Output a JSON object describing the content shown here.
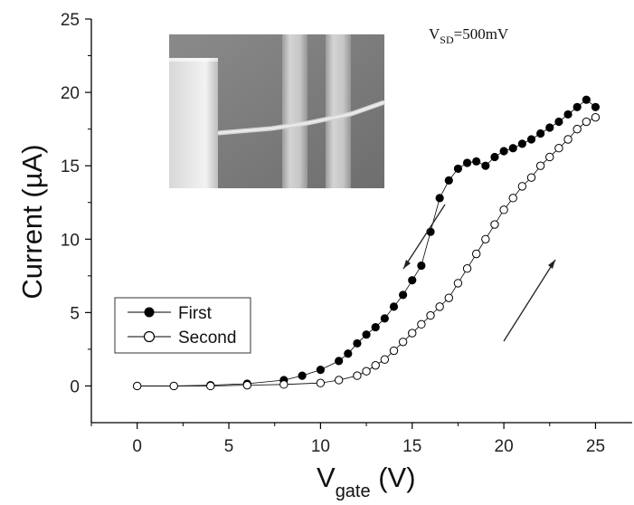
{
  "chart_data": {
    "type": "scatter",
    "annotation": {
      "main": "V",
      "sub": "SD",
      "tail": "=500mV"
    },
    "xlabel": {
      "main": "V",
      "sub": "gate",
      "tail": " (V)"
    },
    "ylabel": "Current (µA)",
    "xlim": [
      -2.5,
      27
    ],
    "ylim": [
      -2.5,
      25
    ],
    "xticks": [
      0,
      5,
      10,
      15,
      20,
      25
    ],
    "yticks": [
      0,
      5,
      10,
      15,
      20,
      25
    ],
    "xtick_labels": [
      "0",
      "5",
      "10",
      "15",
      "20",
      "25"
    ],
    "ytick_labels": [
      "0",
      "5",
      "10",
      "15",
      "20",
      "25"
    ],
    "grid": false,
    "legend_position": "bottom-left",
    "inset": "SEM micrograph",
    "series": [
      {
        "name": "First",
        "marker": "filled-circle",
        "color": "#000000",
        "x": [
          0,
          2,
          4,
          6,
          8,
          9,
          10,
          11,
          11.5,
          12,
          12.5,
          13,
          13.5,
          14,
          14.5,
          15,
          15.5,
          16,
          16.5,
          17,
          17.5,
          18,
          18.5,
          19,
          19.5,
          20,
          20.5,
          21,
          21.5,
          22,
          22.5,
          23,
          23.5,
          24,
          24.5,
          25
        ],
        "y": [
          0,
          0,
          0.05,
          0.15,
          0.4,
          0.7,
          1.1,
          1.7,
          2.2,
          2.9,
          3.5,
          4.0,
          4.6,
          5.4,
          6.2,
          7.2,
          8.2,
          10.5,
          12.8,
          14.0,
          14.8,
          15.2,
          15.3,
          15.0,
          15.6,
          16.0,
          16.2,
          16.5,
          16.8,
          17.2,
          17.6,
          18.0,
          18.5,
          19.0,
          19.5,
          19.0
        ]
      },
      {
        "name": "Second",
        "marker": "open-circle",
        "color": "#000000",
        "x": [
          0,
          2,
          4,
          6,
          8,
          10,
          11,
          12,
          12.5,
          13,
          13.5,
          14,
          14.5,
          15,
          15.5,
          16,
          16.5,
          17,
          17.5,
          18,
          18.5,
          19,
          19.5,
          20,
          20.5,
          21,
          21.5,
          22,
          22.5,
          23,
          23.5,
          24,
          24.5,
          25
        ],
        "y": [
          0,
          0,
          0,
          0.05,
          0.1,
          0.2,
          0.4,
          0.7,
          1.0,
          1.4,
          1.8,
          2.4,
          3.0,
          3.6,
          4.2,
          4.8,
          5.4,
          6.0,
          7.0,
          8.0,
          9.0,
          10.0,
          11.0,
          12.0,
          12.8,
          13.6,
          14.2,
          15.0,
          15.6,
          16.2,
          16.8,
          17.5,
          18.0,
          18.3
        ]
      }
    ]
  }
}
